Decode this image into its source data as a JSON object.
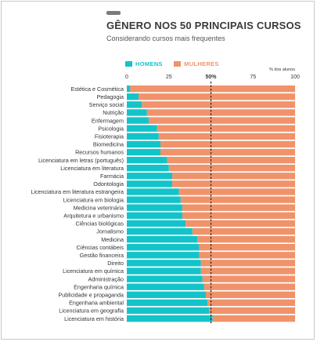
{
  "header": {
    "title": "GÊNERO NOS 50 PRINCIPAIS CURSOS",
    "subtitle": "Considerando cursos mais frequentes"
  },
  "colors": {
    "men": "#12c4c9",
    "women": "#f0936b",
    "threshold_line": "#222222",
    "text": "#333333"
  },
  "chart_data": {
    "type": "bar",
    "orientation": "horizontal",
    "stacked": true,
    "unit_label": "% dos alunos",
    "xlim": [
      0,
      100
    ],
    "x_ticks": [
      {
        "value": 0,
        "label": "0"
      },
      {
        "value": 25,
        "label": "25"
      },
      {
        "value": 50,
        "label": "50%"
      },
      {
        "value": 75,
        "label": "75"
      },
      {
        "value": 100,
        "label": "100"
      }
    ],
    "reference_line": {
      "value": 50,
      "style": "dashed"
    },
    "categories": [
      "Estética e Cosmética",
      "Pedagogia",
      "Serviço social",
      "Nutrição",
      "Enfermagem",
      "Psicologia",
      "Fisioterapia",
      "Biomedicina",
      "Recursos humanos",
      "Licenciatura em letras (português)",
      "Licenciatura em literatura",
      "Farmácia",
      "Odontologia",
      "Licenciatura em literatura estrangeira",
      "Licenciatura em biologia",
      "Medicina veterinária",
      "Arquitetura e urbanismo",
      "Ciências biológicas",
      "Jornalismo",
      "Medicina",
      "Ciências contábeis",
      "Gestão financeira",
      "Direito",
      "Licenciatura em química",
      "Administração",
      "Engenharia química",
      "Publicidade e propaganda",
      "Engenharia ambiental",
      "Licenciatura em geografia",
      "Licenciatura em história"
    ],
    "series": [
      {
        "name": "HOMENS",
        "values": [
          2,
          7,
          9,
          12,
          13,
          18,
          19,
          20,
          20,
          24,
          25,
          27,
          27,
          31,
          32,
          33,
          33,
          35,
          39,
          42,
          43,
          43,
          44,
          44,
          45,
          46,
          47,
          48,
          49,
          51
        ]
      },
      {
        "name": "MULHERES",
        "values": [
          98,
          93,
          91,
          88,
          87,
          82,
          81,
          80,
          80,
          76,
          75,
          73,
          73,
          69,
          68,
          67,
          67,
          65,
          61,
          58,
          57,
          57,
          56,
          56,
          55,
          54,
          53,
          52,
          51,
          49
        ]
      }
    ]
  }
}
